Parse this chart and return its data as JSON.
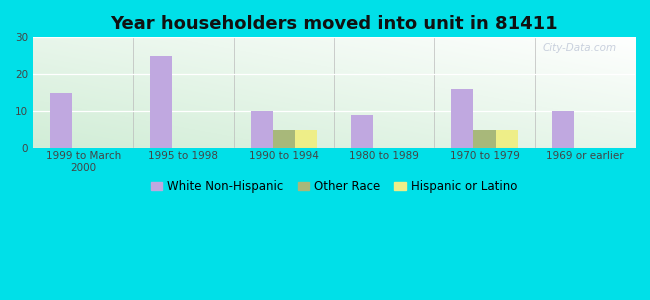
{
  "title": "Year householders moved into unit in 81411",
  "categories": [
    "1999 to March\n2000",
    "1995 to 1998",
    "1990 to 1994",
    "1980 to 1989",
    "1970 to 1979",
    "1969 or earlier"
  ],
  "series": {
    "White Non-Hispanic": [
      15,
      25,
      10,
      9,
      16,
      10
    ],
    "Other Race": [
      0,
      0,
      5,
      0,
      5,
      0
    ],
    "Hispanic or Latino": [
      0,
      0,
      5,
      0,
      5,
      0
    ]
  },
  "colors": {
    "White Non-Hispanic": "#c0a8e0",
    "Other Race": "#a8b87a",
    "Hispanic or Latino": "#eeee88"
  },
  "ylim": [
    0,
    30
  ],
  "yticks": [
    0,
    10,
    20,
    30
  ],
  "bar_width": 0.22,
  "background_outer": "#00e0e8",
  "title_fontsize": 13,
  "tick_fontsize": 7.5,
  "legend_fontsize": 8.5
}
